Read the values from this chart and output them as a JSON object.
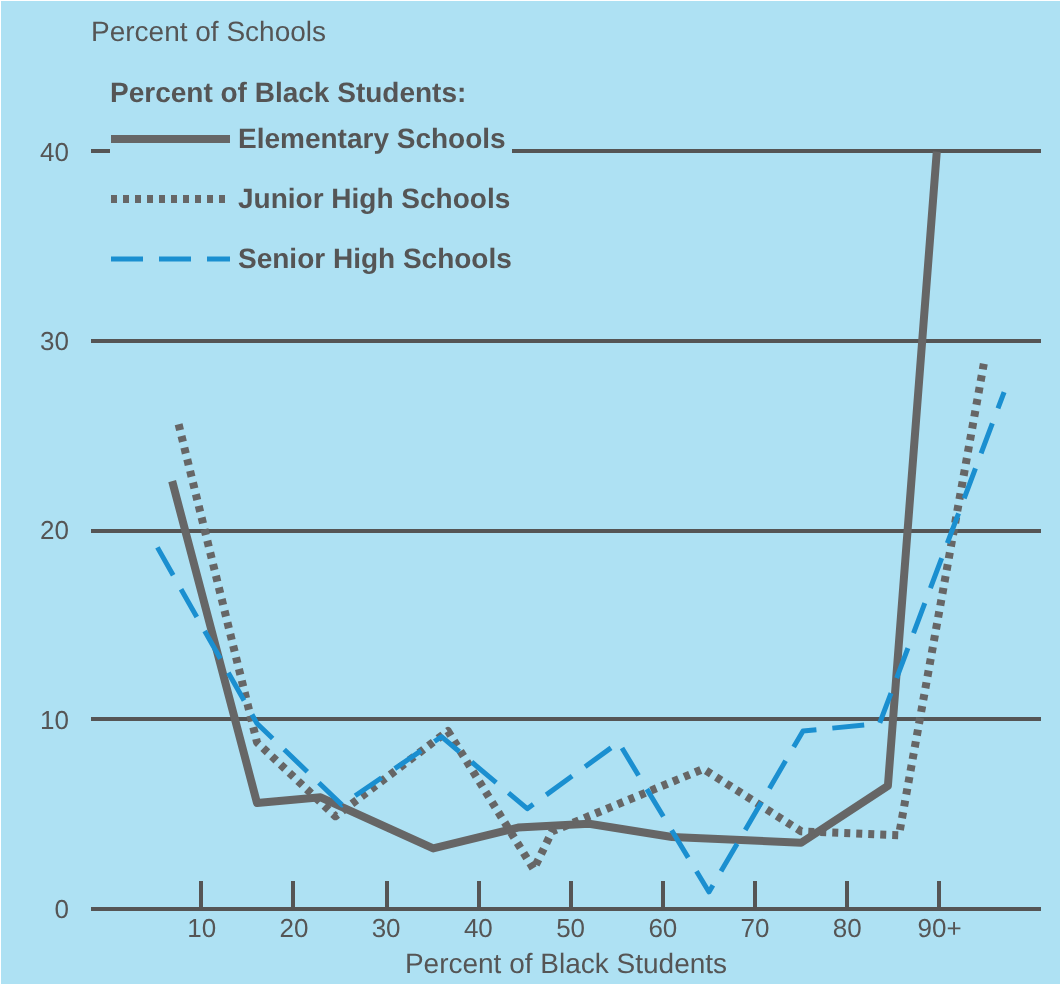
{
  "chart_data": {
    "type": "line",
    "ylabel": "Percent of Schools",
    "xlabel": "Percent of Black Students",
    "legend_title": "Percent of Black Students:",
    "legend": "top left",
    "grid": "y",
    "xlim": [
      -2,
      101
    ],
    "ylim": [
      0,
      45
    ],
    "xticks": [
      10,
      20,
      30,
      40,
      50,
      60,
      70,
      80,
      {
        "value": 90,
        "label": "90+"
      }
    ],
    "yticks": [
      0,
      10,
      20,
      30,
      40
    ],
    "series": [
      {
        "name": "Elementary Schools",
        "color": "#666666",
        "line_style": "solid",
        "x": [
          6.8,
          16,
          22.9,
          35.1,
          44.3,
          52,
          61,
          75,
          84.4,
          89.7
        ],
        "values": [
          22.6,
          5.6,
          5.9,
          3.2,
          4.3,
          4.5,
          3.8,
          3.5,
          6.5,
          40
        ]
      },
      {
        "name": "Junior High Schools",
        "color": "#666666",
        "line_style": "dotted",
        "x": [
          7.5,
          16,
          24.5,
          36.7,
          46,
          48,
          64.4,
          75,
          85.6,
          94.8
        ],
        "values": [
          25.6,
          8.8,
          4.9,
          9.4,
          2.1,
          4.1,
          7.4,
          4.1,
          3.9,
          28.8
        ]
      },
      {
        "name": "Senior High Schools",
        "color": "#1a8fd0",
        "line_style": "dashed",
        "x": [
          5.2,
          16,
          25.2,
          36,
          45.3,
          55.2,
          65,
          75.2,
          83.5,
          97
        ],
        "values": [
          19.1,
          9.8,
          5.5,
          9.1,
          5.3,
          8.8,
          0.9,
          9.4,
          9.8,
          27.3
        ]
      }
    ]
  }
}
